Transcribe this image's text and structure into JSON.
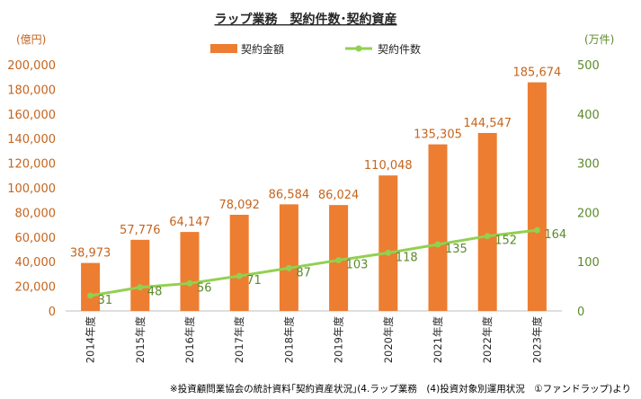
{
  "chart_data": {
    "type": "bar",
    "title": "ラップ業務　契約件数･契約資産",
    "categories": [
      "2014年度",
      "2015年度",
      "2016年度",
      "2017年度",
      "2018年度",
      "2019年度",
      "2020年度",
      "2021年度",
      "2022年度",
      "2023年度"
    ],
    "series": [
      {
        "name": "契約金額",
        "type": "bar",
        "axis": "left",
        "color": "#ed7d31",
        "values": [
          38973,
          57776,
          64147,
          78092,
          86584,
          86024,
          110048,
          135305,
          144547,
          185674
        ],
        "labels": [
          "38,973",
          "57,776",
          "64,147",
          "78,092",
          "86,584",
          "86,024",
          "110,048",
          "135,305",
          "144,547",
          "185,674"
        ]
      },
      {
        "name": "契約件数",
        "type": "line",
        "axis": "right",
        "color": "#92d050",
        "values": [
          31,
          48,
          56,
          71,
          87,
          103,
          118,
          135,
          152,
          164
        ],
        "labels": [
          "31",
          "48",
          "56",
          "71",
          "87",
          "103",
          "118",
          "135",
          "152",
          "164"
        ]
      }
    ],
    "y_left": {
      "unit": "(億円)",
      "ylim": [
        0,
        200000
      ],
      "ticks": [
        "0",
        "20,000",
        "40,000",
        "60,000",
        "80,000",
        "100,000",
        "120,000",
        "140,000",
        "160,000",
        "180,000",
        "200,000"
      ]
    },
    "y_right": {
      "unit": "(万件)",
      "ylim": [
        0,
        500
      ],
      "ticks": [
        "0",
        "100",
        "200",
        "300",
        "400",
        "500"
      ]
    },
    "legend_position": "top-center",
    "grid": false,
    "note": "※投資顧問業協会の統計資料｢契約資産状況｣(4.ラップ業務　(4)投資対象別運用状況　①ファンドラップ)より"
  }
}
